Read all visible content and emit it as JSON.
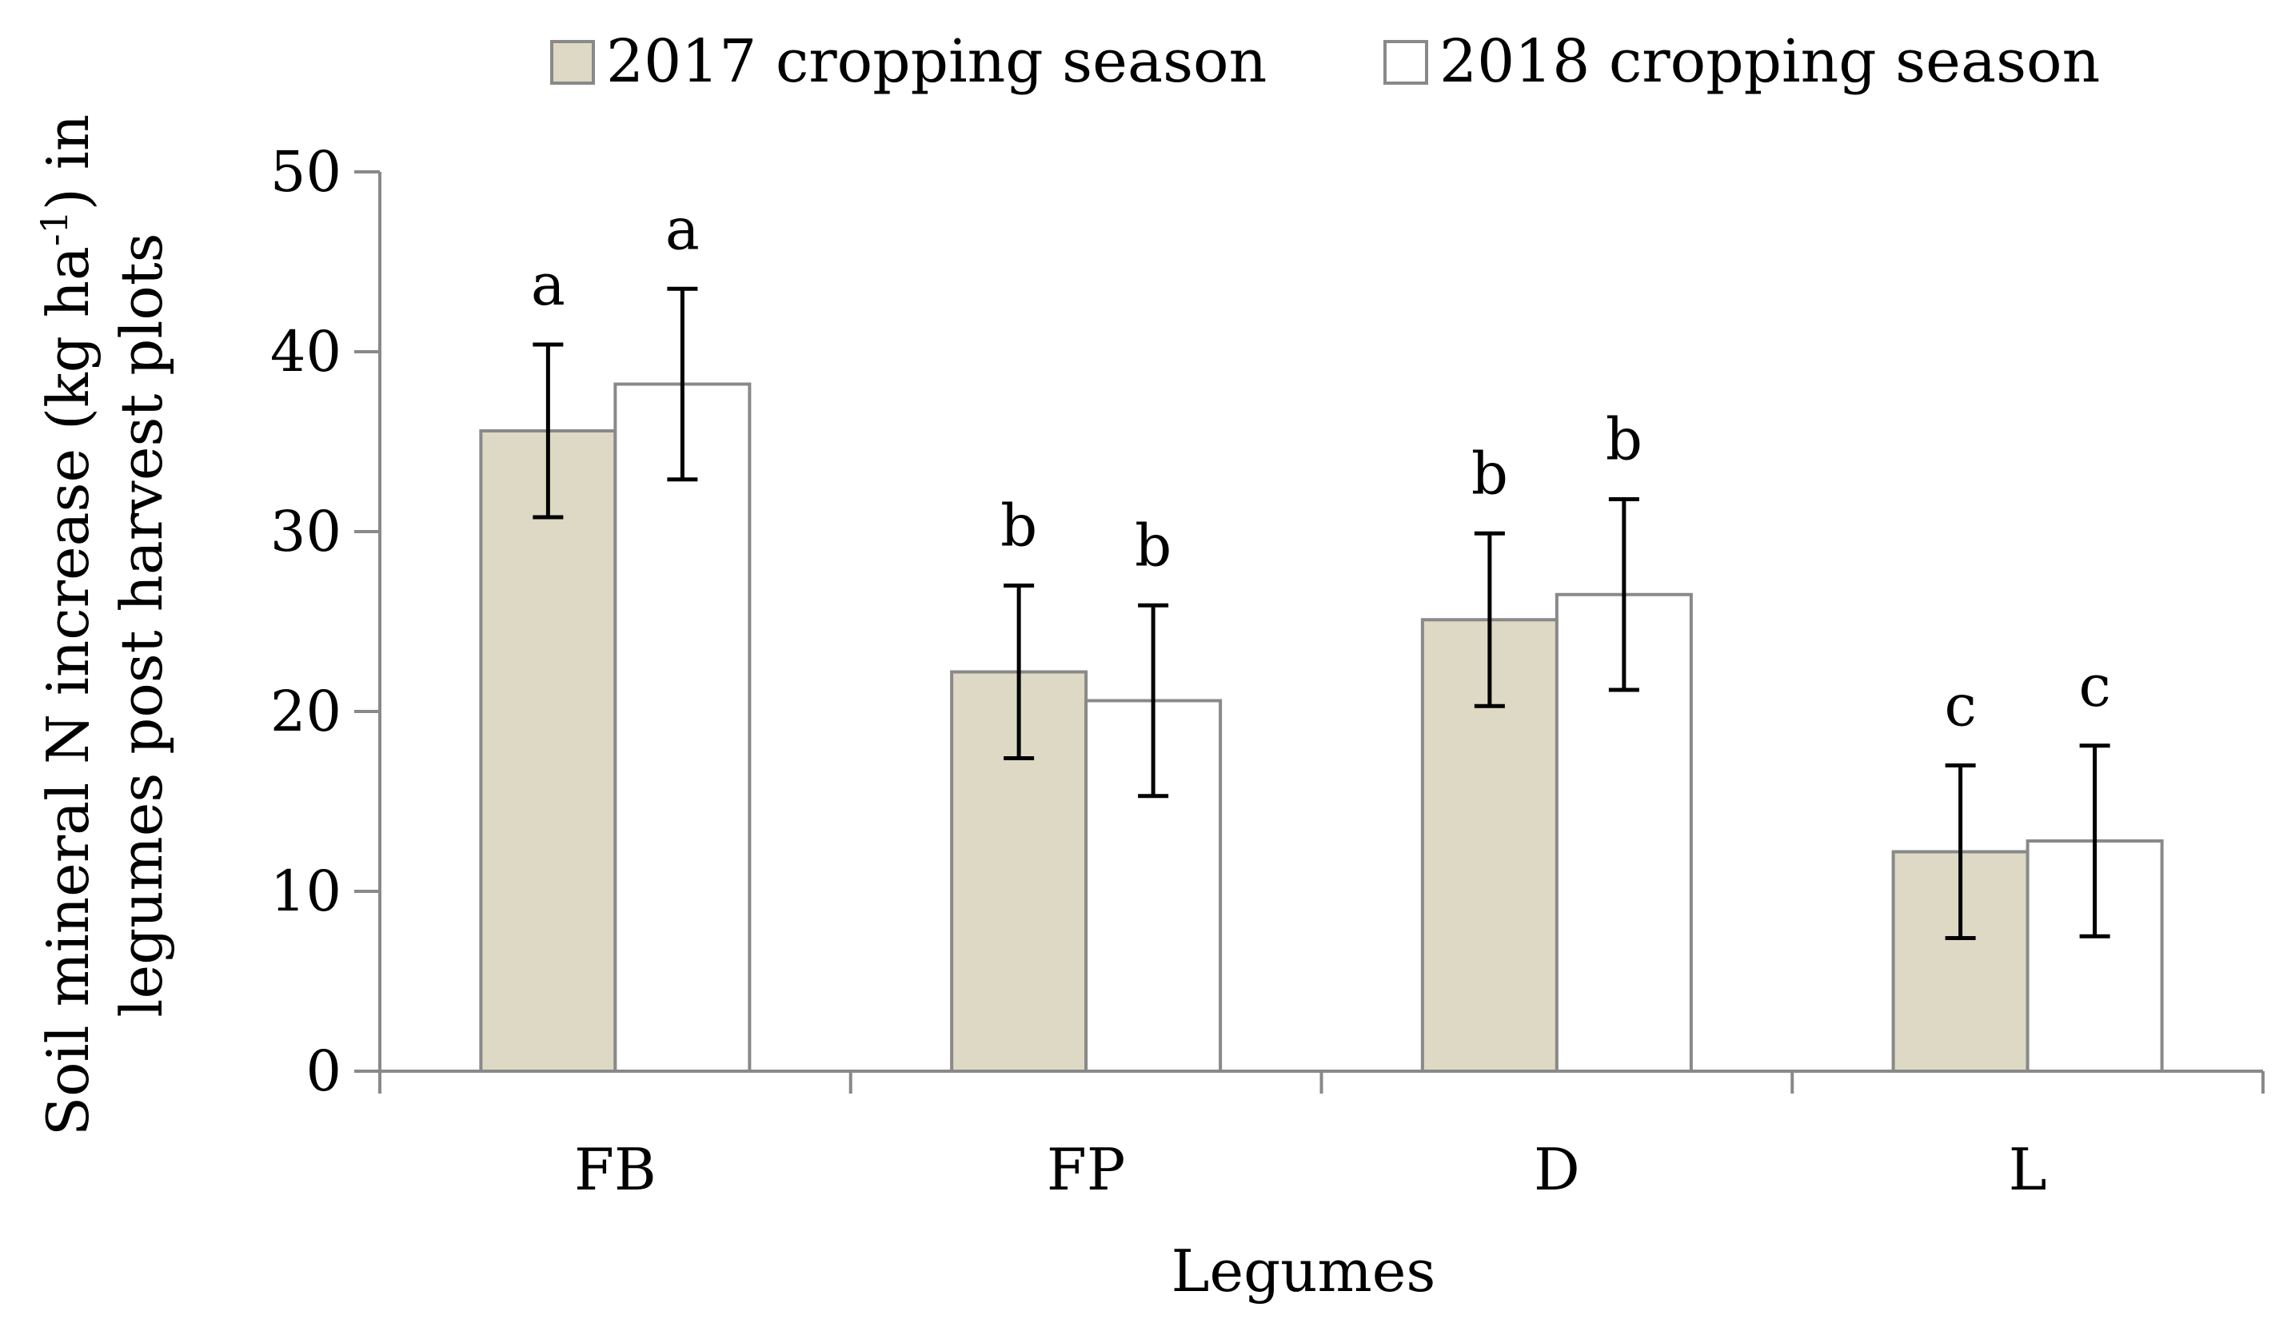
{
  "chart_data": {
    "type": "bar",
    "title": "",
    "xlabel": "Legumes",
    "ylabel_line1": "Soil mineral N increase (kg ha",
    "ylabel_superscript": "-1",
    "ylabel_line1_tail": ") in",
    "ylabel_line2": "legumes post harvest plots",
    "ylim": [
      0,
      50
    ],
    "yticks": [
      "0",
      "10",
      "20",
      "30",
      "40",
      "50"
    ],
    "categories": [
      "FB",
      "FP",
      "D",
      "L"
    ],
    "series": [
      {
        "name": "2017 cropping season",
        "color": "#ddd9c4",
        "values": [
          35.6,
          22.2,
          25.1,
          12.2
        ],
        "errors": [
          4.8,
          4.8,
          4.8,
          4.8
        ],
        "significance": [
          "a",
          "b",
          "b",
          "c"
        ]
      },
      {
        "name": "2018 cropping season",
        "color": "#ffffff",
        "values": [
          38.2,
          20.6,
          26.5,
          12.8
        ],
        "errors": [
          5.3,
          5.3,
          5.3,
          5.3
        ],
        "significance": [
          "a",
          "b",
          "b",
          "c"
        ]
      }
    ],
    "legend_position": "top"
  },
  "colors": {
    "bar_border": "#898989",
    "axis": "#898989",
    "error_bar": "#000000"
  }
}
